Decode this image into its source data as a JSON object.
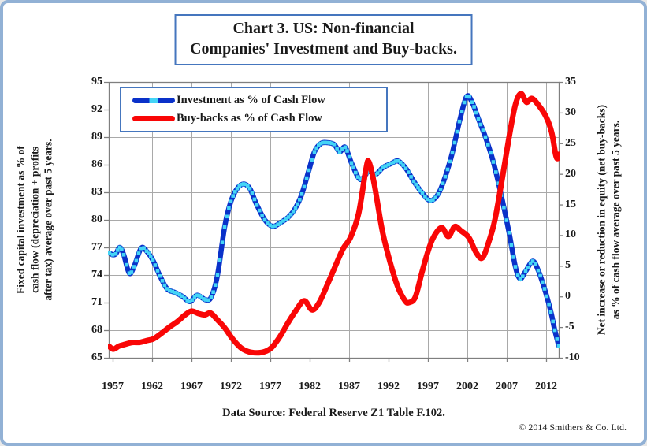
{
  "page": {
    "background": "#ffffff",
    "border_color": "#92b1d5"
  },
  "title": {
    "line1": "Chart 3. US: Non-financial",
    "line2": "Companies' Investment and Buy-backs.",
    "border_color": "#4576be"
  },
  "footer": {
    "data_source": "Data Source: Federal Reserve Z1 Table F.102.",
    "copyright": "© 2014 Smithers & Co. Ltd."
  },
  "colors": {
    "grid": "#a9a9a9",
    "frame": "#7f7f7f",
    "investment_line": "#0a31c9",
    "investment_marker": "#44d4f6",
    "buybacks_line": "#f90606"
  },
  "chart_data": {
    "type": "line",
    "title": "Chart 3. US: Non-financial Companies' Investment and Buy-backs.",
    "grid": true,
    "legend_position": "top-left-inside",
    "x_axis": {
      "min": 1956.5,
      "max": 2013.6,
      "tick_years": [
        1957,
        1962,
        1967,
        1972,
        1977,
        1982,
        1987,
        1992,
        1997,
        2002,
        2007,
        2012
      ]
    },
    "left_axis": {
      "min": 65,
      "max": 95,
      "tick_step": 3,
      "ticks": [
        95,
        92,
        89,
        86,
        83,
        80,
        77,
        74,
        71,
        68,
        65
      ],
      "title_lines": [
        "Fixed capital investment as % of",
        "cash flow (depreciation + profits",
        "after tax) average over past 5 years."
      ]
    },
    "right_axis": {
      "min": -10,
      "max": 35,
      "tick_step": 5,
      "ticks": [
        35,
        30,
        25,
        20,
        15,
        10,
        5,
        0,
        -5,
        -10
      ],
      "title_lines": [
        "Net increase or reduction in equity (net buy-backs)",
        "as % of cash flow average over past 5 years."
      ]
    },
    "series": [
      {
        "name": "Investment as % of Cash Flow",
        "axis": "left",
        "line_color": "#0a31c9",
        "line_width": 6.5,
        "marker": "square",
        "marker_color": "#44d4f6",
        "points": [
          [
            1956.6,
            76.4
          ],
          [
            1957.0,
            76.2
          ],
          [
            1957.4,
            76.3
          ],
          [
            1957.9,
            77.0
          ],
          [
            1958.4,
            76.2
          ],
          [
            1959.1,
            74.2
          ],
          [
            1959.7,
            74.9
          ],
          [
            1960.6,
            76.9
          ],
          [
            1961.3,
            76.6
          ],
          [
            1962.1,
            75.6
          ],
          [
            1963.0,
            73.9
          ],
          [
            1963.9,
            72.5
          ],
          [
            1964.9,
            72.1
          ],
          [
            1965.8,
            71.7
          ],
          [
            1966.8,
            71.1
          ],
          [
            1967.7,
            71.8
          ],
          [
            1968.8,
            71.3
          ],
          [
            1969.5,
            71.6
          ],
          [
            1970.3,
            74.0
          ],
          [
            1971.2,
            79.2
          ],
          [
            1972.0,
            82.0
          ],
          [
            1972.8,
            83.4
          ],
          [
            1973.6,
            83.9
          ],
          [
            1974.4,
            83.4
          ],
          [
            1975.3,
            81.6
          ],
          [
            1976.3,
            80.0
          ],
          [
            1977.3,
            79.3
          ],
          [
            1978.3,
            79.7
          ],
          [
            1979.3,
            80.3
          ],
          [
            1980.2,
            81.3
          ],
          [
            1981.0,
            82.8
          ],
          [
            1981.9,
            85.4
          ],
          [
            1982.6,
            87.4
          ],
          [
            1983.4,
            88.3
          ],
          [
            1984.2,
            88.4
          ],
          [
            1985.1,
            88.2
          ],
          [
            1985.8,
            87.4
          ],
          [
            1986.5,
            87.9
          ],
          [
            1987.3,
            86.2
          ],
          [
            1988.4,
            84.4
          ],
          [
            1989.5,
            85.3
          ],
          [
            1990.3,
            84.9
          ],
          [
            1991.3,
            85.7
          ],
          [
            1992.3,
            86.1
          ],
          [
            1993.2,
            86.4
          ],
          [
            1994.2,
            85.6
          ],
          [
            1995.2,
            84.2
          ],
          [
            1996.3,
            82.9
          ],
          [
            1997.3,
            82.1
          ],
          [
            1998.3,
            82.8
          ],
          [
            1999.2,
            84.7
          ],
          [
            2000.1,
            87.3
          ],
          [
            2001.0,
            90.7
          ],
          [
            2001.9,
            93.4
          ],
          [
            2002.6,
            92.8
          ],
          [
            2003.4,
            91.0
          ],
          [
            2004.3,
            89.0
          ],
          [
            2005.3,
            86.3
          ],
          [
            2006.3,
            82.7
          ],
          [
            2007.3,
            78.6
          ],
          [
            2008.1,
            74.9
          ],
          [
            2008.7,
            73.6
          ],
          [
            2009.4,
            74.4
          ],
          [
            2010.3,
            75.5
          ],
          [
            2011.0,
            74.5
          ],
          [
            2011.8,
            72.5
          ],
          [
            2012.6,
            70.0
          ],
          [
            2013.1,
            68.0
          ],
          [
            2013.6,
            66.3
          ]
        ]
      },
      {
        "name": "Buy-backs as % of Cash Flow",
        "axis": "right",
        "line_color": "#f90606",
        "line_width": 7,
        "marker": "none",
        "points": [
          [
            1956.6,
            -8.2
          ],
          [
            1957.1,
            -8.6
          ],
          [
            1957.8,
            -8.1
          ],
          [
            1958.6,
            -7.8
          ],
          [
            1959.5,
            -7.5
          ],
          [
            1960.4,
            -7.5
          ],
          [
            1961.3,
            -7.2
          ],
          [
            1962.2,
            -6.9
          ],
          [
            1963.2,
            -6.0
          ],
          [
            1964.2,
            -5.0
          ],
          [
            1965.2,
            -4.1
          ],
          [
            1966.2,
            -3.0
          ],
          [
            1967.0,
            -2.4
          ],
          [
            1967.9,
            -2.8
          ],
          [
            1968.7,
            -3.0
          ],
          [
            1969.4,
            -2.7
          ],
          [
            1970.2,
            -3.7
          ],
          [
            1971.2,
            -5.1
          ],
          [
            1972.2,
            -6.9
          ],
          [
            1973.2,
            -8.3
          ],
          [
            1974.2,
            -9.0
          ],
          [
            1975.3,
            -9.2
          ],
          [
            1976.3,
            -9.0
          ],
          [
            1977.2,
            -8.3
          ],
          [
            1978.2,
            -6.6
          ],
          [
            1979.2,
            -4.4
          ],
          [
            1980.2,
            -2.4
          ],
          [
            1981.3,
            -0.7
          ],
          [
            1982.3,
            -2.2
          ],
          [
            1983.2,
            -1.0
          ],
          [
            1984.2,
            1.8
          ],
          [
            1985.2,
            4.8
          ],
          [
            1986.2,
            7.7
          ],
          [
            1987.2,
            9.7
          ],
          [
            1988.2,
            13.5
          ],
          [
            1989.1,
            20.5
          ],
          [
            1989.5,
            22.0
          ],
          [
            1990.2,
            18.3
          ],
          [
            1991.2,
            10.8
          ],
          [
            1992.2,
            5.6
          ],
          [
            1993.2,
            1.5
          ],
          [
            1994.1,
            -0.7
          ],
          [
            1994.6,
            -1.0
          ],
          [
            1995.4,
            -0.1
          ],
          [
            1996.3,
            4.2
          ],
          [
            1997.2,
            8.1
          ],
          [
            1998.0,
            10.3
          ],
          [
            1998.8,
            11.2
          ],
          [
            1999.6,
            9.8
          ],
          [
            2000.4,
            11.4
          ],
          [
            2001.2,
            10.7
          ],
          [
            2002.2,
            9.6
          ],
          [
            2003.1,
            7.2
          ],
          [
            2003.9,
            6.3
          ],
          [
            2004.7,
            8.8
          ],
          [
            2005.5,
            12.5
          ],
          [
            2006.4,
            19.0
          ],
          [
            2007.3,
            26.0
          ],
          [
            2008.1,
            31.3
          ],
          [
            2008.8,
            33.1
          ],
          [
            2009.5,
            31.7
          ],
          [
            2010.2,
            32.3
          ],
          [
            2011.1,
            31.1
          ],
          [
            2012.0,
            29.3
          ],
          [
            2012.7,
            26.8
          ],
          [
            2013.2,
            23.2
          ],
          [
            2013.45,
            22.5
          ],
          [
            2013.65,
            23.2
          ]
        ]
      }
    ]
  }
}
